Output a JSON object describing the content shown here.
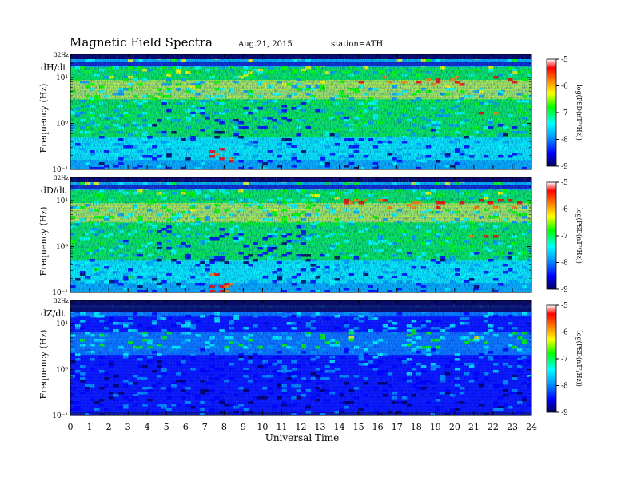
{
  "header": {
    "title": "Magnetic  Field  Spectra",
    "date": "Aug.21, 2015",
    "station": "station=ATH"
  },
  "chart_data": {
    "type": "heatmap",
    "xlabel": "Universal Time",
    "xlim": [
      0,
      24
    ],
    "x_ticks": [
      "0",
      "1",
      "2",
      "3",
      "4",
      "5",
      "6",
      "7",
      "8",
      "9",
      "10",
      "11",
      "12",
      "13",
      "14",
      "15",
      "16",
      "17",
      "18",
      "19",
      "20",
      "21",
      "22",
      "23",
      "24"
    ],
    "colorbar": {
      "label": "log(PSD(nT²/Hz))",
      "range": [
        -9,
        -5
      ],
      "ticks": [
        "-5",
        "-6",
        "-7",
        "-8",
        "-9"
      ],
      "colors": [
        "#00005a",
        "#0000ff",
        "#00a0ff",
        "#00ffff",
        "#00ff00",
        "#ffff00",
        "#ff8000",
        "#ff0000",
        "#ffffff"
      ]
    },
    "panels": [
      {
        "component": "dH/dt",
        "ylabel": "Frequency  (Hz)",
        "top_label": "32Hz",
        "y_ticks": [
          "10¹",
          "10⁰",
          "10⁻¹"
        ],
        "ylim": [
          0.1,
          32
        ],
        "scale": "log"
      },
      {
        "component": "dD/dt",
        "ylabel": "Frequency  (Hz)",
        "top_label": "32Hz",
        "y_ticks": [
          "10¹",
          "10⁰",
          "10⁻¹"
        ],
        "ylim": [
          0.1,
          32
        ],
        "scale": "log"
      },
      {
        "component": "dZ/dt",
        "ylabel": "Frequency  (Hz)",
        "top_label": "32Hz",
        "y_ticks": [
          "10¹",
          "10⁰",
          "10⁻¹"
        ],
        "ylim": [
          0.1,
          32
        ],
        "scale": "log"
      }
    ]
  }
}
